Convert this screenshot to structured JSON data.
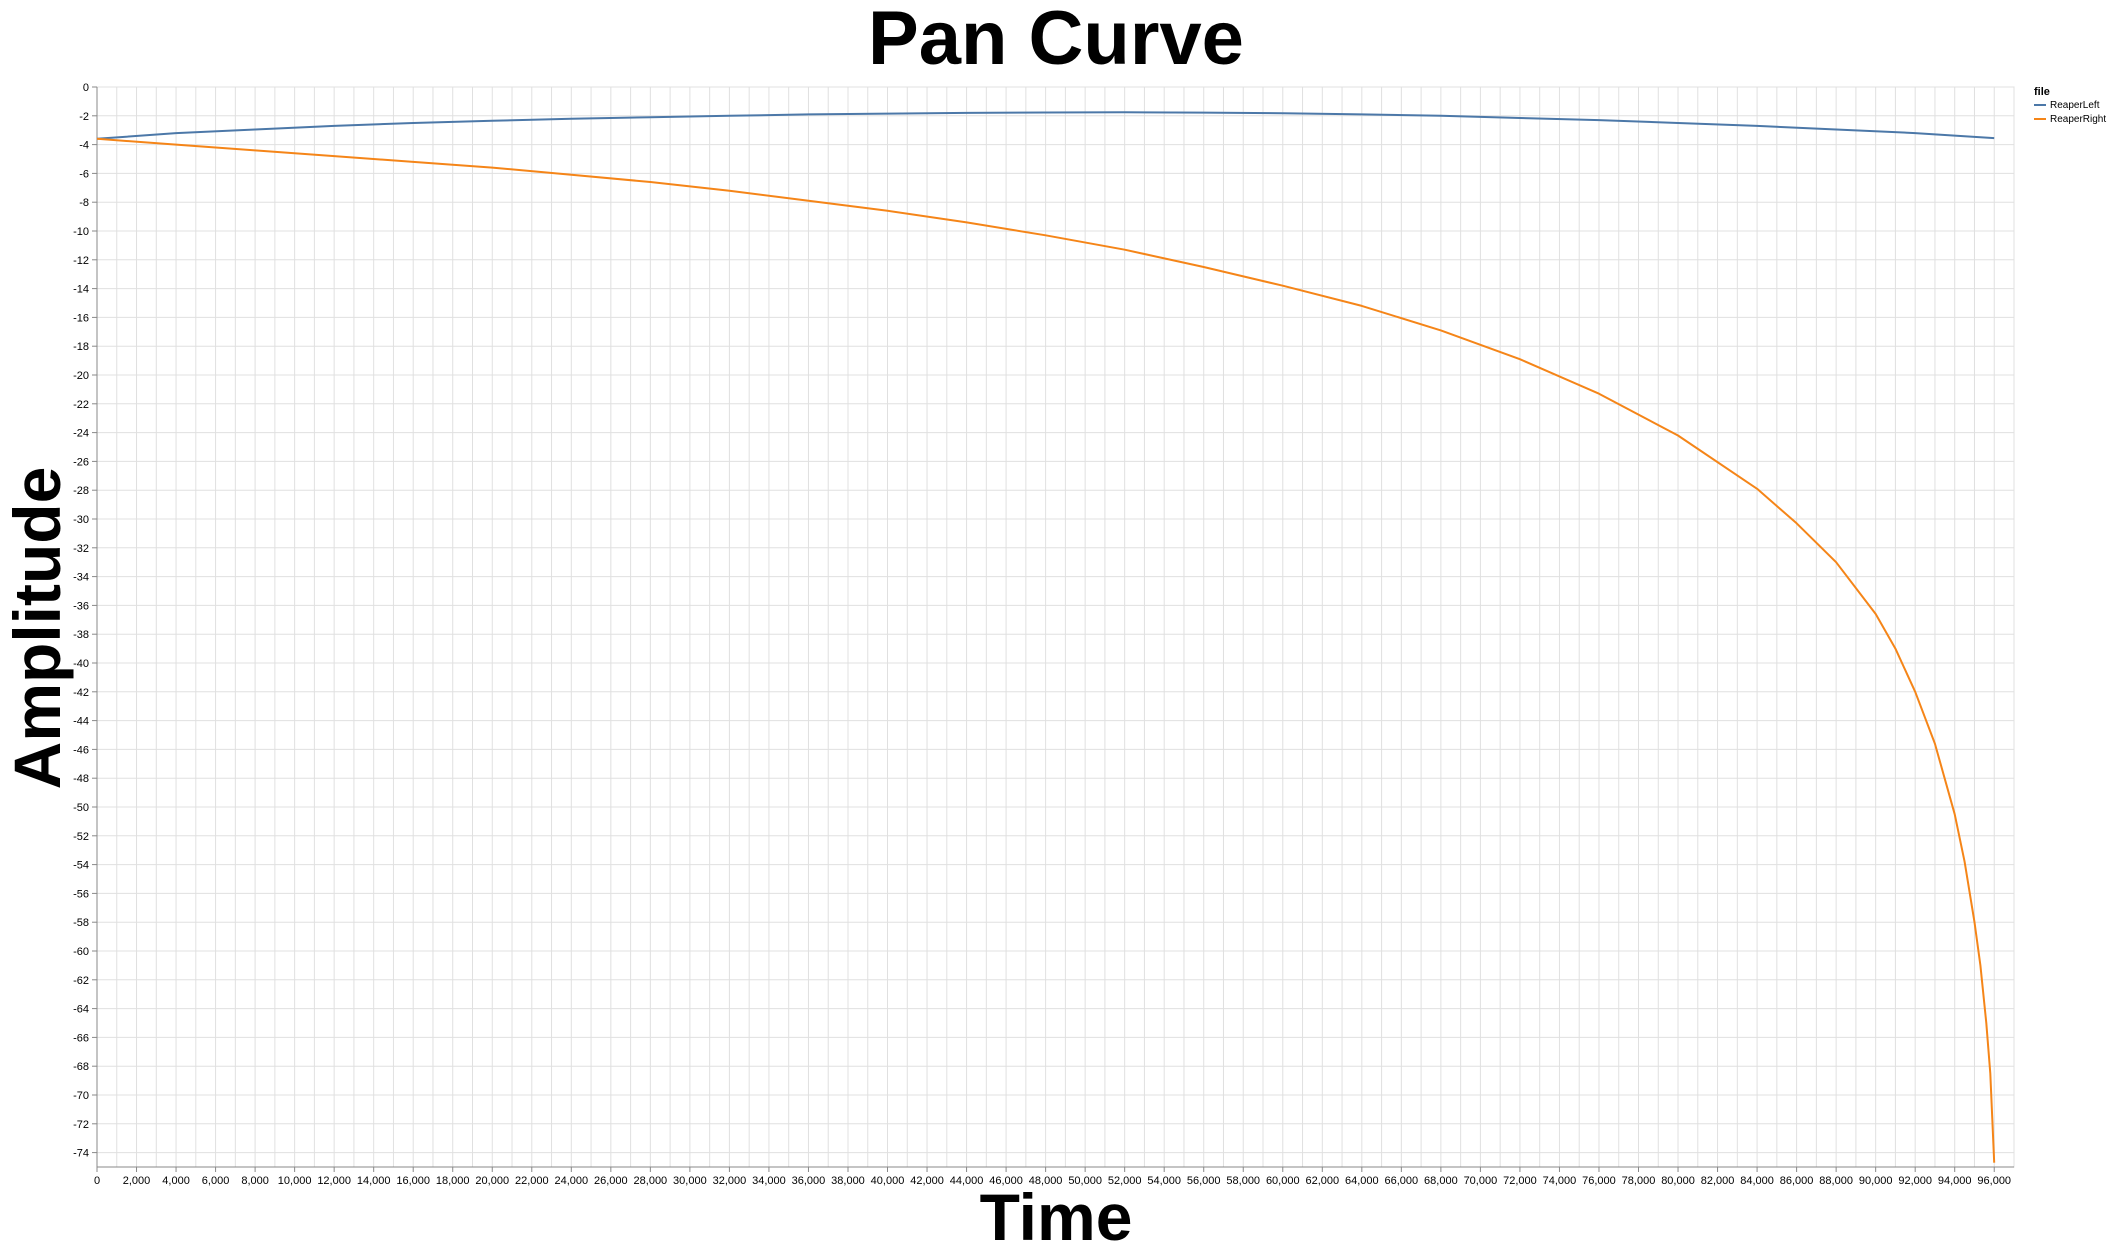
{
  "chart_data": {
    "type": "line",
    "title": "Pan Curve",
    "xlabel": "Time",
    "ylabel": "Amplitude",
    "xlim": [
      0,
      97000
    ],
    "ylim": [
      -75,
      0
    ],
    "x_ticks": [
      "0",
      "2,000",
      "4,000",
      "6,000",
      "8,000",
      "10,000",
      "12,000",
      "14,000",
      "16,000",
      "18,000",
      "20,000",
      "22,000",
      "24,000",
      "26,000",
      "28,000",
      "30,000",
      "32,000",
      "34,000",
      "36,000",
      "38,000",
      "40,000",
      "42,000",
      "44,000",
      "46,000",
      "48,000",
      "50,000",
      "52,000",
      "54,000",
      "56,000",
      "58,000",
      "60,000",
      "62,000",
      "64,000",
      "66,000",
      "68,000",
      "70,000",
      "72,000",
      "74,000",
      "76,000",
      "78,000",
      "80,000",
      "82,000",
      "84,000",
      "86,000",
      "88,000",
      "90,000",
      "92,000",
      "94,000",
      "96,000"
    ],
    "y_ticks": [
      "0",
      "-2",
      "-4",
      "-6",
      "-8",
      "-10",
      "-12",
      "-14",
      "-16",
      "-18",
      "-20",
      "-22",
      "-24",
      "-26",
      "-28",
      "-30",
      "-32",
      "-34",
      "-36",
      "-38",
      "-40",
      "-42",
      "-44",
      "-46",
      "-48",
      "-50",
      "-52",
      "-54",
      "-56",
      "-58",
      "-60",
      "-62",
      "-64",
      "-66",
      "-68",
      "-70",
      "-72",
      "-74"
    ],
    "grid": true,
    "legend": {
      "title": "file",
      "position": "top-right"
    },
    "series": [
      {
        "name": "ReaperLeft",
        "color": "#4c78a8",
        "x": [
          0,
          4000,
          8000,
          12000,
          16000,
          20000,
          24000,
          28000,
          32000,
          36000,
          40000,
          44000,
          48000,
          52000,
          56000,
          60000,
          64000,
          68000,
          72000,
          76000,
          80000,
          84000,
          88000,
          92000,
          96000
        ],
        "y": [
          -3.6,
          -3.2,
          -2.95,
          -2.7,
          -2.5,
          -2.35,
          -2.2,
          -2.1,
          -2.0,
          -1.9,
          -1.85,
          -1.8,
          -1.77,
          -1.76,
          -1.78,
          -1.82,
          -1.9,
          -2.0,
          -2.15,
          -2.3,
          -2.5,
          -2.7,
          -2.95,
          -3.2,
          -3.55
        ]
      },
      {
        "name": "ReaperRight",
        "color": "#f58518",
        "x": [
          0,
          4000,
          8000,
          12000,
          16000,
          20000,
          24000,
          28000,
          32000,
          36000,
          40000,
          44000,
          48000,
          52000,
          56000,
          60000,
          64000,
          68000,
          72000,
          76000,
          80000,
          84000,
          86000,
          88000,
          90000,
          91000,
          92000,
          93000,
          94000,
          94500,
          95000,
          95300,
          95600,
          95800,
          96000
        ],
        "y": [
          -3.6,
          -4.0,
          -4.4,
          -4.8,
          -5.2,
          -5.6,
          -6.1,
          -6.6,
          -7.2,
          -7.9,
          -8.6,
          -9.4,
          -10.3,
          -11.3,
          -12.5,
          -13.8,
          -15.2,
          -16.9,
          -18.9,
          -21.3,
          -24.2,
          -27.9,
          -30.3,
          -33.0,
          -36.6,
          -39.0,
          -42.0,
          -45.6,
          -50.5,
          -53.8,
          -58.0,
          -61.0,
          -65.0,
          -68.5,
          -74.7
        ]
      }
    ]
  }
}
